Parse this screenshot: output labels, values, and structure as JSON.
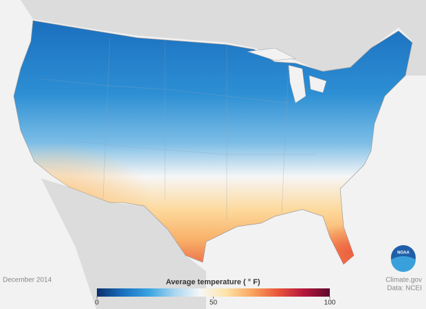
{
  "date": "December 2014",
  "legend": {
    "title": "Average temperature ( ° F)",
    "range": [
      0,
      100
    ],
    "ticks": [
      0,
      50,
      100
    ],
    "colors": [
      "#0b2f6b",
      "#1a6fbf",
      "#38a3e0",
      "#a9d6f0",
      "#f7f7f7",
      "#fde3a7",
      "#f9a55e",
      "#e8553a",
      "#b5163d",
      "#5e0a2e"
    ]
  },
  "credit": {
    "source": "Climate.gov",
    "data": "Data: NCEI"
  },
  "logo": "NOAA"
}
